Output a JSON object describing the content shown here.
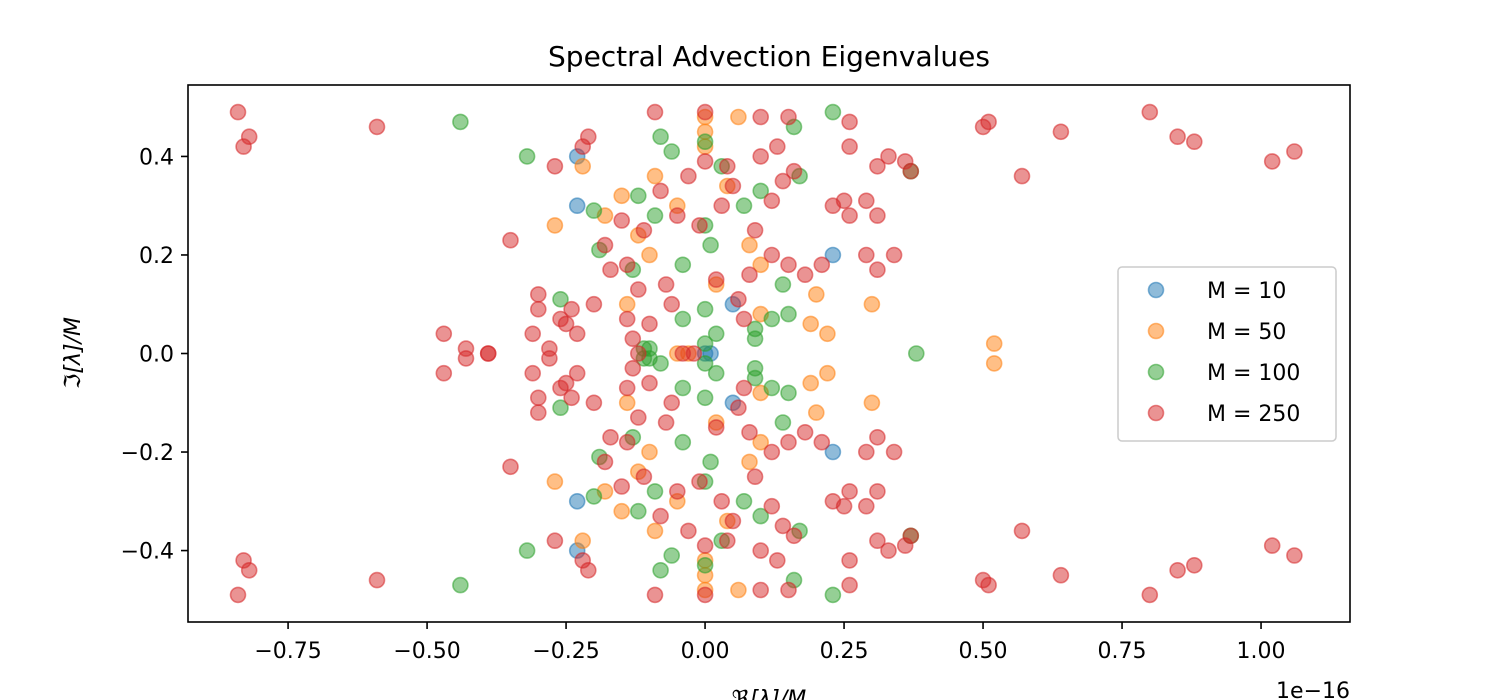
{
  "chart_data": {
    "type": "scatter",
    "title": "Spectral Advection Eigenvalues",
    "xlabel": "ℜ[λ]/M",
    "ylabel": "ℑ[λ]/M",
    "x_offset_label": "1e−16",
    "xlim": [
      -0.93,
      1.16
    ],
    "ylim": [
      -0.545,
      0.545
    ],
    "xticks": [
      {
        "value": -0.75,
        "label": "−0.75"
      },
      {
        "value": -0.5,
        "label": "−0.50"
      },
      {
        "value": -0.25,
        "label": "−0.25"
      },
      {
        "value": 0.0,
        "label": "0.00"
      },
      {
        "value": 0.25,
        "label": "0.25"
      },
      {
        "value": 0.5,
        "label": "0.50"
      },
      {
        "value": 0.75,
        "label": "0.75"
      },
      {
        "value": 1.0,
        "label": "1.00"
      }
    ],
    "yticks": [
      {
        "value": -0.4,
        "label": "−0.4"
      },
      {
        "value": -0.2,
        "label": "−0.2"
      },
      {
        "value": 0.0,
        "label": "0.0"
      },
      {
        "value": 0.2,
        "label": "0.2"
      },
      {
        "value": 0.4,
        "label": "0.4"
      }
    ],
    "grid": false,
    "legend_position": "center-right",
    "series": [
      {
        "name": "M = 10",
        "color": "#1f77b4",
        "points": [
          [
            -0.23,
            0.4
          ],
          [
            -0.23,
            -0.4
          ],
          [
            -0.23,
            0.3
          ],
          [
            -0.23,
            -0.3
          ],
          [
            0.23,
            0.2
          ],
          [
            0.23,
            -0.2
          ],
          [
            0.05,
            0.1
          ],
          [
            0.05,
            -0.1
          ],
          [
            0.0,
            0.0
          ],
          [
            0.01,
            0.0
          ]
        ]
      },
      {
        "name": "M = 50",
        "color": "#ff7f0e",
        "points": [
          [
            0.0,
            0.48
          ],
          [
            0.06,
            0.48
          ],
          [
            0.0,
            -0.48
          ],
          [
            0.06,
            -0.48
          ],
          [
            -0.22,
            0.38
          ],
          [
            -0.22,
            -0.38
          ],
          [
            0.0,
            0.45
          ],
          [
            0.0,
            -0.45
          ],
          [
            -0.27,
            0.26
          ],
          [
            -0.27,
            -0.26
          ],
          [
            -0.18,
            0.28
          ],
          [
            -0.18,
            -0.28
          ],
          [
            -0.15,
            0.32
          ],
          [
            -0.15,
            -0.32
          ],
          [
            -0.12,
            0.24
          ],
          [
            -0.12,
            -0.24
          ],
          [
            -0.1,
            0.2
          ],
          [
            -0.1,
            -0.2
          ],
          [
            -0.09,
            0.36
          ],
          [
            -0.09,
            -0.36
          ],
          [
            -0.05,
            0.3
          ],
          [
            -0.05,
            -0.3
          ],
          [
            0.0,
            0.42
          ],
          [
            0.0,
            -0.42
          ],
          [
            0.04,
            0.34
          ],
          [
            0.04,
            -0.34
          ],
          [
            0.02,
            0.14
          ],
          [
            0.02,
            -0.14
          ],
          [
            0.1,
            0.18
          ],
          [
            0.1,
            -0.18
          ],
          [
            0.2,
            0.12
          ],
          [
            0.2,
            -0.12
          ],
          [
            0.19,
            0.06
          ],
          [
            0.19,
            -0.06
          ],
          [
            0.22,
            0.04
          ],
          [
            0.22,
            -0.04
          ],
          [
            0.3,
            0.1
          ],
          [
            0.3,
            -0.1
          ],
          [
            0.52,
            0.02
          ],
          [
            0.52,
            -0.02
          ],
          [
            -0.03,
            0.0
          ],
          [
            -0.05,
            0.0
          ],
          [
            0.1,
            0.08
          ],
          [
            0.1,
            -0.08
          ],
          [
            0.08,
            0.22
          ],
          [
            0.08,
            -0.22
          ],
          [
            -0.14,
            0.1
          ],
          [
            -0.14,
            -0.1
          ]
        ]
      },
      {
        "name": "M = 100",
        "color": "#2ca02c",
        "points": [
          [
            -0.44,
            0.47
          ],
          [
            -0.44,
            -0.47
          ],
          [
            -0.32,
            0.4
          ],
          [
            -0.32,
            -0.4
          ],
          [
            0.23,
            0.49
          ],
          [
            0.23,
            -0.49
          ],
          [
            0.16,
            0.46
          ],
          [
            0.16,
            -0.46
          ],
          [
            0.37,
            0.37
          ],
          [
            0.37,
            -0.37
          ],
          [
            0.38,
            0.0
          ],
          [
            -0.08,
            0.44
          ],
          [
            -0.08,
            -0.44
          ],
          [
            0.0,
            0.43
          ],
          [
            0.0,
            -0.43
          ],
          [
            -0.06,
            0.41
          ],
          [
            -0.06,
            -0.41
          ],
          [
            -0.2,
            0.29
          ],
          [
            -0.2,
            -0.29
          ],
          [
            -0.19,
            0.21
          ],
          [
            -0.19,
            -0.21
          ],
          [
            -0.26,
            0.11
          ],
          [
            -0.26,
            -0.11
          ],
          [
            -0.12,
            0.32
          ],
          [
            -0.12,
            -0.32
          ],
          [
            -0.09,
            0.28
          ],
          [
            -0.09,
            -0.28
          ],
          [
            -0.04,
            0.18
          ],
          [
            -0.04,
            -0.18
          ],
          [
            0.0,
            0.26
          ],
          [
            0.0,
            -0.26
          ],
          [
            0.01,
            0.22
          ],
          [
            0.01,
            -0.22
          ],
          [
            0.03,
            0.38
          ],
          [
            0.03,
            -0.38
          ],
          [
            0.07,
            0.3
          ],
          [
            0.07,
            -0.3
          ],
          [
            0.1,
            0.33
          ],
          [
            0.1,
            -0.33
          ],
          [
            0.14,
            0.14
          ],
          [
            0.14,
            -0.14
          ],
          [
            0.17,
            0.36
          ],
          [
            0.17,
            -0.36
          ],
          [
            0.12,
            0.07
          ],
          [
            0.12,
            -0.07
          ],
          [
            0.09,
            0.05
          ],
          [
            0.09,
            -0.05
          ],
          [
            -0.1,
            0.01
          ],
          [
            -0.1,
            -0.01
          ],
          [
            0.0,
            0.09
          ],
          [
            0.0,
            -0.09
          ],
          [
            0.02,
            0.04
          ],
          [
            0.02,
            -0.04
          ],
          [
            0.15,
            0.08
          ],
          [
            0.15,
            -0.08
          ],
          [
            -0.13,
            0.17
          ],
          [
            -0.13,
            -0.17
          ],
          [
            -0.04,
            0.07
          ],
          [
            -0.04,
            -0.07
          ],
          [
            0.0,
            0.02
          ],
          [
            0.0,
            -0.02
          ],
          [
            0.09,
            0.03
          ],
          [
            0.09,
            -0.03
          ],
          [
            -0.11,
            0.01
          ],
          [
            -0.11,
            -0.01
          ],
          [
            -0.08,
            -0.02
          ]
        ]
      },
      {
        "name": "M = 250",
        "color": "#d62728",
        "points": [
          [
            -0.84,
            0.49
          ],
          [
            -0.84,
            -0.49
          ],
          [
            -0.83,
            0.42
          ],
          [
            -0.83,
            -0.42
          ],
          [
            -0.82,
            0.44
          ],
          [
            -0.82,
            -0.44
          ],
          [
            -0.59,
            0.46
          ],
          [
            -0.59,
            -0.46
          ],
          [
            -0.47,
            0.04
          ],
          [
            -0.47,
            -0.04
          ],
          [
            -0.43,
            0.01
          ],
          [
            -0.43,
            -0.01
          ],
          [
            -0.39,
            0.0
          ],
          [
            -0.39,
            0.0
          ],
          [
            -0.35,
            0.23
          ],
          [
            -0.35,
            -0.23
          ],
          [
            -0.3,
            0.12
          ],
          [
            -0.3,
            -0.12
          ],
          [
            -0.3,
            0.09
          ],
          [
            -0.3,
            -0.09
          ],
          [
            -0.31,
            0.04
          ],
          [
            -0.31,
            -0.04
          ],
          [
            -0.28,
            0.01
          ],
          [
            -0.28,
            -0.01
          ],
          [
            -0.27,
            0.38
          ],
          [
            -0.27,
            -0.38
          ],
          [
            -0.26,
            0.07
          ],
          [
            -0.26,
            -0.07
          ],
          [
            -0.25,
            0.06
          ],
          [
            -0.25,
            -0.06
          ],
          [
            -0.24,
            0.09
          ],
          [
            -0.24,
            -0.09
          ],
          [
            -0.22,
            0.42
          ],
          [
            -0.22,
            -0.42
          ],
          [
            -0.21,
            0.44
          ],
          [
            -0.21,
            -0.44
          ],
          [
            -0.2,
            0.1
          ],
          [
            -0.2,
            -0.1
          ],
          [
            -0.17,
            0.17
          ],
          [
            -0.17,
            -0.17
          ],
          [
            -0.15,
            0.27
          ],
          [
            -0.15,
            -0.27
          ],
          [
            -0.14,
            0.18
          ],
          [
            -0.14,
            -0.18
          ],
          [
            -0.12,
            0.13
          ],
          [
            -0.12,
            -0.13
          ],
          [
            -0.11,
            0.25
          ],
          [
            -0.11,
            -0.25
          ],
          [
            -0.09,
            0.49
          ],
          [
            -0.09,
            -0.49
          ],
          [
            -0.08,
            0.33
          ],
          [
            -0.08,
            -0.33
          ],
          [
            -0.07,
            0.14
          ],
          [
            -0.07,
            -0.14
          ],
          [
            -0.06,
            0.1
          ],
          [
            -0.06,
            -0.1
          ],
          [
            -0.05,
            0.28
          ],
          [
            -0.05,
            -0.28
          ],
          [
            -0.03,
            0.36
          ],
          [
            -0.03,
            -0.36
          ],
          [
            -0.02,
            0.0
          ],
          [
            0.0,
            0.49
          ],
          [
            0.0,
            -0.49
          ],
          [
            0.0,
            0.39
          ],
          [
            0.0,
            -0.39
          ],
          [
            0.02,
            0.15
          ],
          [
            0.02,
            -0.15
          ],
          [
            0.03,
            0.3
          ],
          [
            0.03,
            -0.3
          ],
          [
            0.05,
            0.34
          ],
          [
            0.05,
            -0.34
          ],
          [
            0.06,
            0.11
          ],
          [
            0.06,
            -0.11
          ],
          [
            0.08,
            0.16
          ],
          [
            0.08,
            -0.16
          ],
          [
            0.09,
            0.25
          ],
          [
            0.09,
            -0.25
          ],
          [
            0.1,
            0.48
          ],
          [
            0.1,
            -0.48
          ],
          [
            0.1,
            0.4
          ],
          [
            0.1,
            -0.4
          ],
          [
            0.12,
            0.31
          ],
          [
            0.12,
            -0.31
          ],
          [
            0.13,
            0.42
          ],
          [
            0.13,
            -0.42
          ],
          [
            0.14,
            0.35
          ],
          [
            0.14,
            -0.35
          ],
          [
            0.15,
            0.48
          ],
          [
            0.15,
            -0.48
          ],
          [
            0.15,
            0.18
          ],
          [
            0.15,
            -0.18
          ],
          [
            0.16,
            0.37
          ],
          [
            0.16,
            -0.37
          ],
          [
            0.18,
            0.16
          ],
          [
            0.18,
            -0.16
          ],
          [
            0.21,
            0.18
          ],
          [
            0.21,
            -0.18
          ],
          [
            0.23,
            0.3
          ],
          [
            0.23,
            -0.3
          ],
          [
            0.25,
            0.31
          ],
          [
            0.25,
            -0.31
          ],
          [
            0.26,
            0.28
          ],
          [
            0.26,
            -0.28
          ],
          [
            0.26,
            0.42
          ],
          [
            0.26,
            -0.42
          ],
          [
            0.26,
            0.47
          ],
          [
            0.26,
            -0.47
          ],
          [
            0.29,
            0.31
          ],
          [
            0.29,
            -0.31
          ],
          [
            0.29,
            0.2
          ],
          [
            0.29,
            -0.2
          ],
          [
            0.31,
            0.28
          ],
          [
            0.31,
            -0.28
          ],
          [
            0.31,
            0.17
          ],
          [
            0.31,
            -0.17
          ],
          [
            0.31,
            0.38
          ],
          [
            0.31,
            -0.38
          ],
          [
            0.33,
            0.4
          ],
          [
            0.33,
            -0.4
          ],
          [
            0.34,
            0.2
          ],
          [
            0.34,
            -0.2
          ],
          [
            0.36,
            0.39
          ],
          [
            0.36,
            -0.39
          ],
          [
            0.37,
            0.37
          ],
          [
            0.37,
            -0.37
          ],
          [
            0.5,
            0.46
          ],
          [
            0.5,
            -0.46
          ],
          [
            0.51,
            0.47
          ],
          [
            0.51,
            -0.47
          ],
          [
            0.57,
            0.36
          ],
          [
            0.57,
            -0.36
          ],
          [
            0.64,
            0.45
          ],
          [
            0.64,
            -0.45
          ],
          [
            0.8,
            0.49
          ],
          [
            0.8,
            -0.49
          ],
          [
            0.85,
            0.44
          ],
          [
            0.85,
            -0.44
          ],
          [
            0.88,
            0.43
          ],
          [
            0.88,
            -0.43
          ],
          [
            1.02,
            0.39
          ],
          [
            1.02,
            -0.39
          ],
          [
            1.06,
            0.41
          ],
          [
            1.06,
            -0.41
          ],
          [
            -0.13,
            0.03
          ],
          [
            -0.13,
            -0.03
          ],
          [
            -0.14,
            0.07
          ],
          [
            -0.14,
            -0.07
          ],
          [
            -0.1,
            0.06
          ],
          [
            -0.1,
            -0.06
          ],
          [
            -0.12,
            0.0
          ],
          [
            -0.04,
            0.0
          ],
          [
            0.12,
            0.2
          ],
          [
            0.12,
            -0.2
          ],
          [
            0.07,
            0.07
          ],
          [
            0.07,
            -0.07
          ],
          [
            -0.01,
            0.26
          ],
          [
            -0.01,
            -0.26
          ],
          [
            -0.23,
            0.04
          ],
          [
            -0.23,
            -0.04
          ],
          [
            -0.18,
            0.22
          ],
          [
            -0.18,
            -0.22
          ],
          [
            0.04,
            0.38
          ],
          [
            0.04,
            -0.38
          ]
        ]
      }
    ]
  }
}
